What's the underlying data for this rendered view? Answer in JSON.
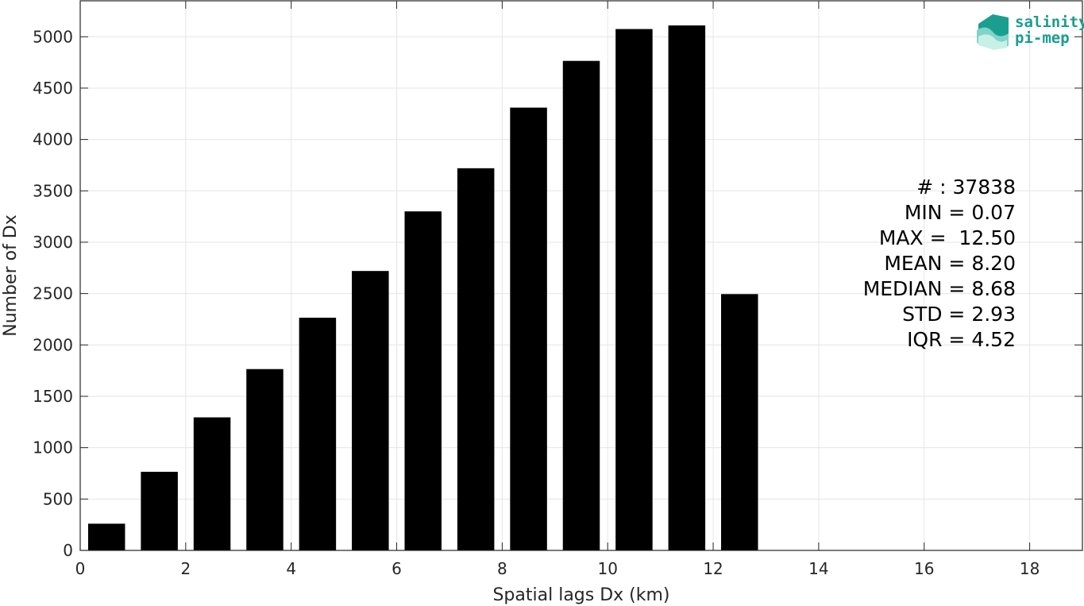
{
  "chart_data": {
    "type": "bar",
    "title": "",
    "xlabel": "Spatial lags Dx (km)",
    "ylabel": "Number of Dx",
    "xlim": [
      0,
      19
    ],
    "ylim": [
      0,
      5350
    ],
    "xticks": [
      0,
      2,
      4,
      6,
      8,
      10,
      12,
      14,
      16,
      18
    ],
    "yticks": [
      0,
      500,
      1000,
      1500,
      2000,
      2500,
      3000,
      3500,
      4000,
      4500,
      5000
    ],
    "grid": true,
    "bar_width": 0.7,
    "bar_color": "#000000",
    "x": [
      0.5,
      1.5,
      2.5,
      3.5,
      4.5,
      5.5,
      6.5,
      7.5,
      8.5,
      9.5,
      10.5,
      11.5,
      12.5
    ],
    "values": [
      260,
      765,
      1295,
      1765,
      2265,
      2720,
      3300,
      3720,
      4310,
      4765,
      5075,
      5110,
      2495
    ],
    "stats": [
      "# : 37838",
      "MIN = 0.07",
      "MAX =  12.50",
      "MEAN = 8.20",
      "MEDIAN = 8.68",
      "STD = 2.93",
      "IQR = 4.52"
    ]
  },
  "logo": {
    "line1": "salinity",
    "line2": "pi-mep",
    "color": "#1a9e8f"
  }
}
